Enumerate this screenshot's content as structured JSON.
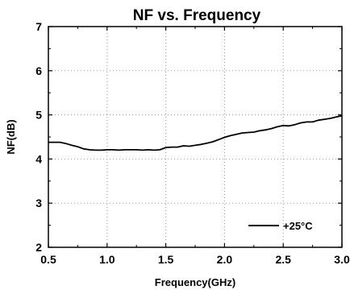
{
  "chart_data": {
    "type": "line",
    "title": "NF vs. Frequency",
    "xlabel": "Frequency(GHz)",
    "ylabel": "NF(dB)",
    "xlim": [
      0.5,
      3.0
    ],
    "ylim": [
      2,
      7
    ],
    "xticks": [
      "0.5",
      "1.0",
      "1.5",
      "2.0",
      "2.5",
      "3.0"
    ],
    "yticks": [
      "2",
      "3",
      "4",
      "5",
      "6",
      "7"
    ],
    "grid": true,
    "legend_position": "bottom-right",
    "series": [
      {
        "name": "+25°C",
        "color": "#000000",
        "x": [
          0.5,
          0.6,
          0.65,
          0.7,
          0.75,
          0.8,
          0.85,
          0.9,
          0.95,
          1.0,
          1.05,
          1.1,
          1.15,
          1.2,
          1.25,
          1.3,
          1.35,
          1.4,
          1.45,
          1.5,
          1.55,
          1.6,
          1.65,
          1.7,
          1.75,
          1.8,
          1.85,
          1.9,
          1.95,
          2.0,
          2.05,
          2.1,
          2.15,
          2.2,
          2.25,
          2.3,
          2.35,
          2.4,
          2.45,
          2.5,
          2.55,
          2.6,
          2.65,
          2.7,
          2.75,
          2.8,
          2.85,
          2.9,
          2.95,
          3.0
        ],
        "values": [
          4.38,
          4.38,
          4.35,
          4.31,
          4.28,
          4.23,
          4.21,
          4.2,
          4.2,
          4.21,
          4.21,
          4.2,
          4.21,
          4.21,
          4.21,
          4.2,
          4.21,
          4.2,
          4.21,
          4.26,
          4.27,
          4.27,
          4.3,
          4.29,
          4.31,
          4.33,
          4.36,
          4.39,
          4.44,
          4.49,
          4.53,
          4.56,
          4.59,
          4.6,
          4.61,
          4.64,
          4.66,
          4.69,
          4.73,
          4.76,
          4.75,
          4.78,
          4.82,
          4.84,
          4.84,
          4.88,
          4.9,
          4.92,
          4.95,
          4.98
        ]
      }
    ]
  }
}
